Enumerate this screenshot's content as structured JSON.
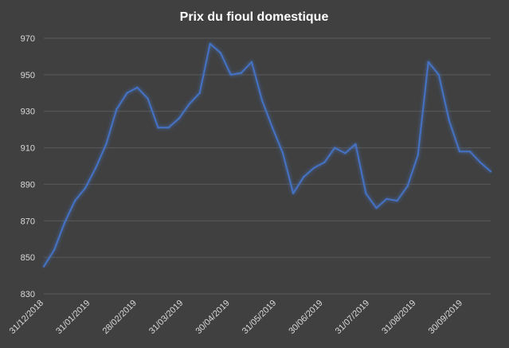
{
  "chart_data": {
    "type": "line",
    "title": "Prix du fioul domestique",
    "xlabel": "",
    "ylabel": "",
    "ylim": [
      830,
      970
    ],
    "y_ticks": [
      830,
      850,
      870,
      890,
      910,
      930,
      950,
      970
    ],
    "grid": true,
    "legend": "none",
    "x_tick_labels": [
      "31/12/2018",
      "31/01/2019",
      "28/02/2019",
      "31/03/2019",
      "30/04/2019",
      "31/05/2019",
      "30/06/2019",
      "31/07/2019",
      "31/08/2019",
      "30/09/2019"
    ],
    "series": [
      {
        "name": "",
        "color": "#4472c4",
        "values": [
          845,
          854,
          869,
          881,
          888,
          899,
          912,
          931,
          940,
          943,
          937,
          921,
          921,
          926,
          934,
          940,
          967,
          962,
          950,
          951,
          957,
          936,
          921,
          907,
          885,
          894,
          899,
          902,
          910,
          907,
          912,
          885,
          877,
          882,
          881,
          889,
          906,
          957,
          950,
          925,
          908,
          908,
          902,
          897
        ]
      }
    ]
  },
  "colors": {
    "background": "#404040",
    "line": "#4472c4",
    "grid": "#5a5a5a",
    "text": "#d9d9d9"
  }
}
